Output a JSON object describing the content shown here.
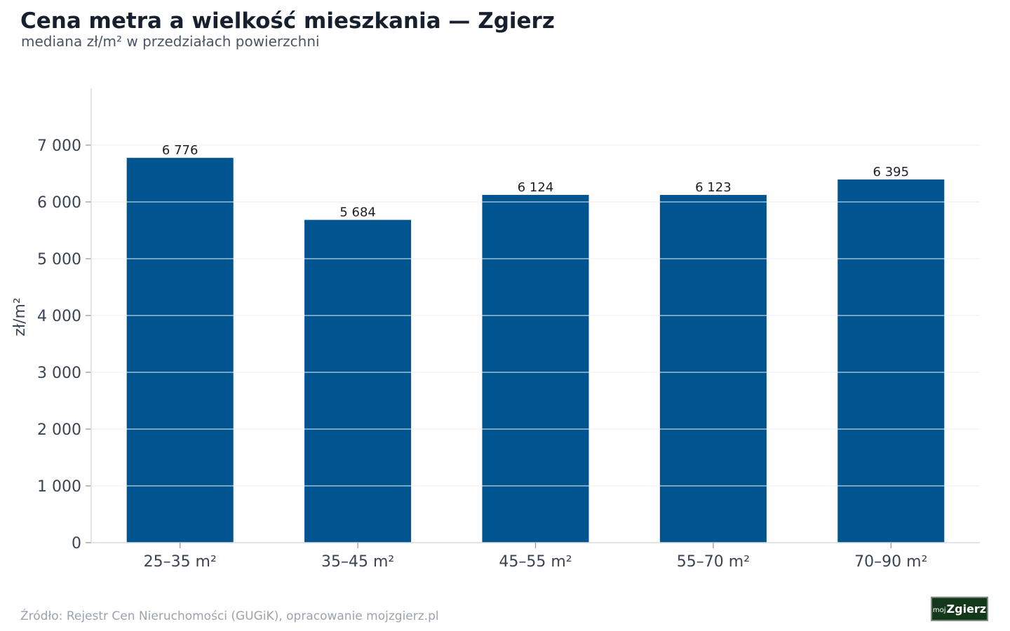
{
  "header": {
    "title": "Cena metra a wielkość mieszkania — Zgierz",
    "subtitle": "mediana zł/m² w przedziałach powierzchni"
  },
  "chart_data": {
    "type": "bar",
    "categories": [
      "25–35 m²",
      "35–45 m²",
      "45–55 m²",
      "55–70 m²",
      "70–90 m²"
    ],
    "values": [
      6776,
      5684,
      6124,
      6123,
      6395
    ],
    "value_labels": [
      "6 776",
      "5 684",
      "6 124",
      "6 123",
      "6 395"
    ],
    "ylabel": "zł/m²",
    "ylim": [
      0,
      8000
    ],
    "yticks": [
      0,
      1000,
      2000,
      3000,
      4000,
      5000,
      6000,
      7000
    ],
    "ytick_labels": [
      "0",
      "1 000",
      "2 000",
      "3 000",
      "4 000",
      "5 000",
      "6 000",
      "7 000"
    ],
    "grid": true,
    "bar_color": "#005490"
  },
  "footer": {
    "source": "Źródło: Rejestr Cen Nieruchomości (GUGiK), opracowanie mojzgierz.pl",
    "logo_prefix": "moj",
    "logo_main": "Zgierz"
  }
}
